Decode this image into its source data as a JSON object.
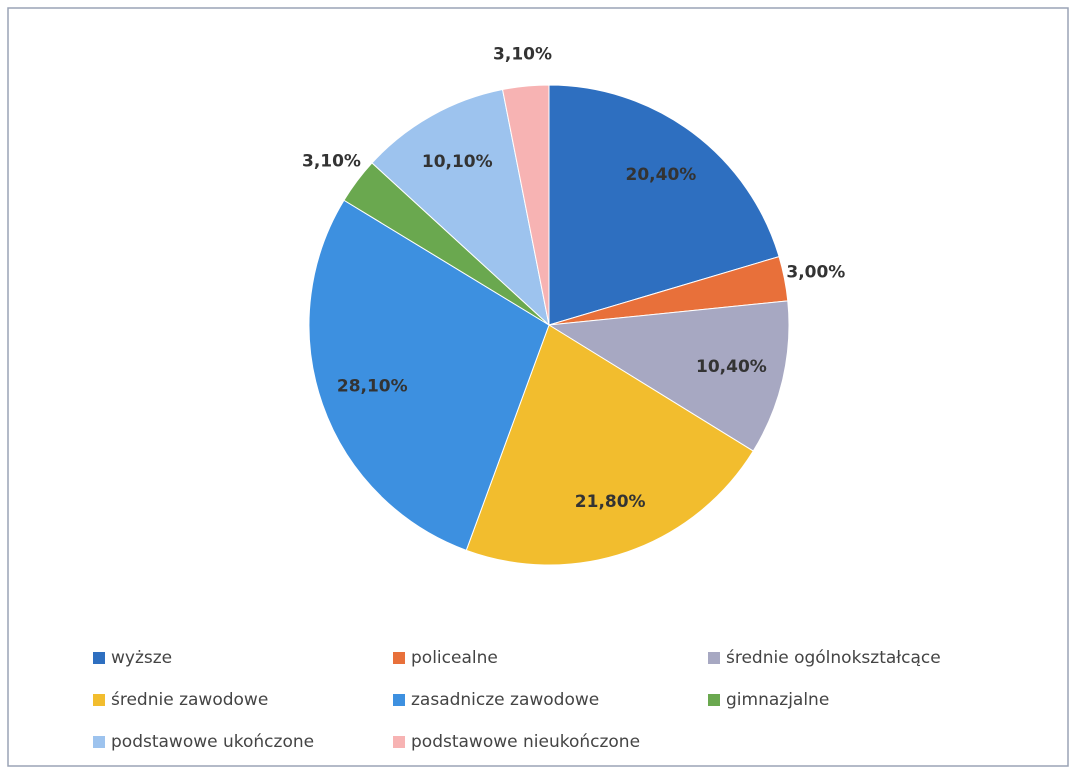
{
  "chart_data": {
    "type": "pie",
    "categories": [
      "wyższe",
      "policealne",
      "średnie ogólnokształcące",
      "średnie zawodowe",
      "zasadnicze zawodowe",
      "gimnazjalne",
      "podstawowe ukończone",
      "podstawowe nieukończone"
    ],
    "values": [
      20.4,
      3.0,
      10.4,
      21.8,
      28.1,
      3.1,
      10.1,
      3.1
    ],
    "value_labels": [
      "20,40%",
      "3,00%",
      "10,40%",
      "21,80%",
      "28,10%",
      "3,10%",
      "10,10%",
      "3,10%"
    ],
    "colors": [
      "#2e6fc0",
      "#e8703a",
      "#a7a8c2",
      "#f2bd2e",
      "#3d90e0",
      "#6aa84f",
      "#9dc3ee",
      "#f7b3b3"
    ],
    "legend": "bottom"
  }
}
